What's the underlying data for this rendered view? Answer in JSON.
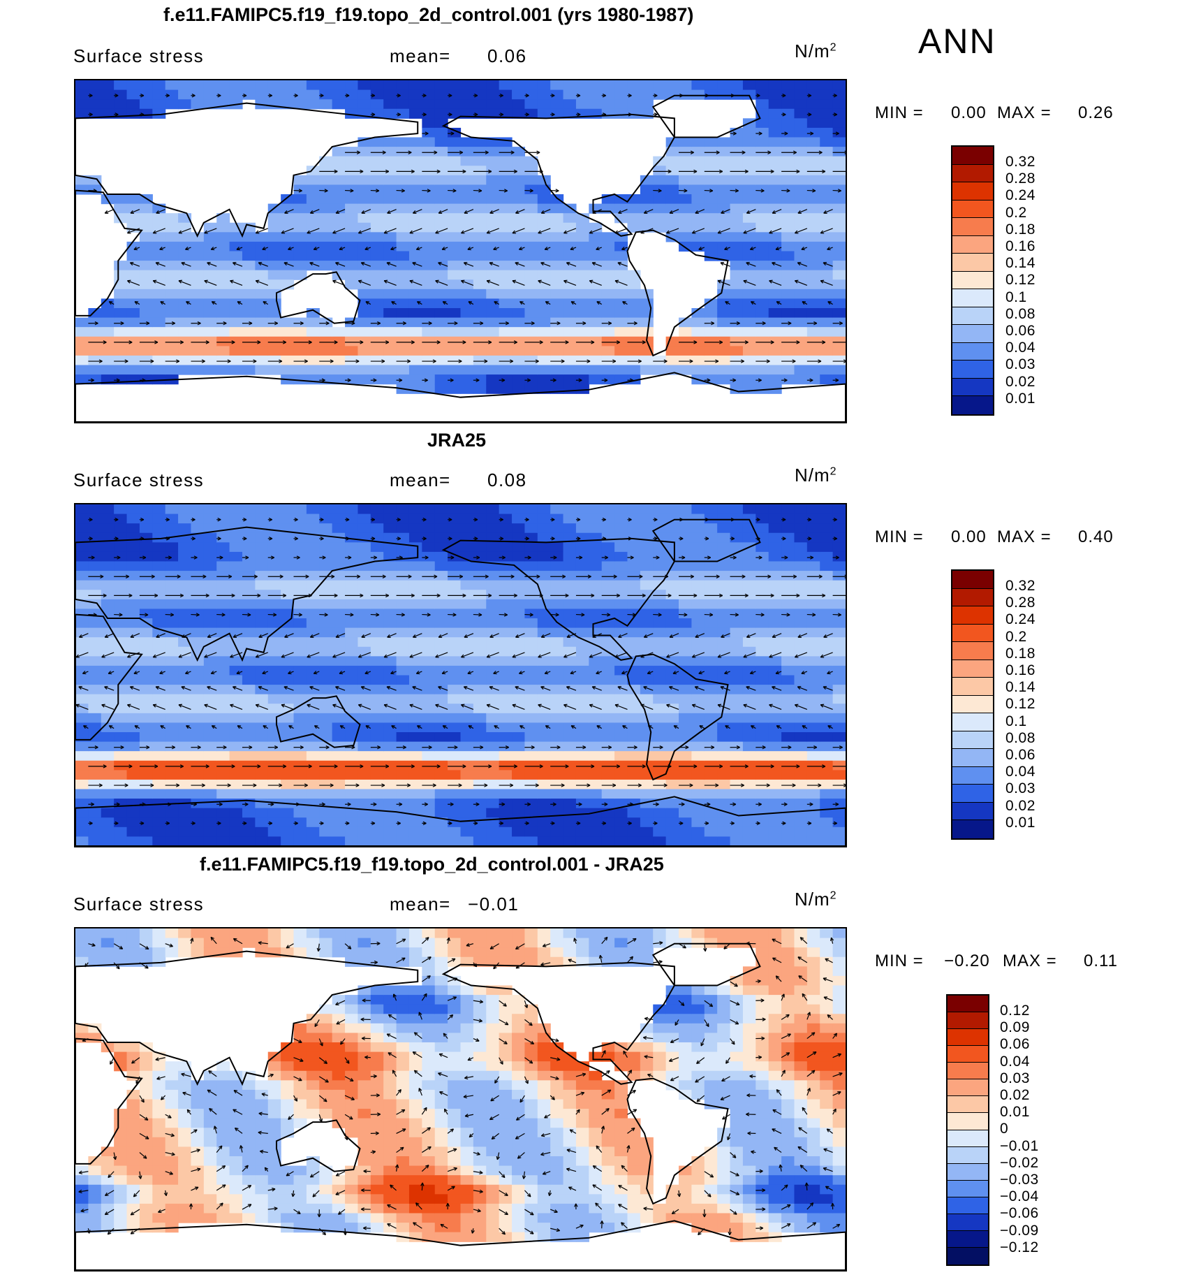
{
  "season": "ANN",
  "chart_data": [
    {
      "type": "heatmap",
      "title": "f.e11.FAMIPC5.f19_f19.topo_2d_control.001 (yrs 1980-1987)",
      "variable": "Surface stress",
      "mean_label": "mean=",
      "mean_value": "0.06",
      "units": "N/m",
      "units_sup": "2",
      "min_label": "MIN =",
      "min_value": "0.00",
      "max_label": "MAX =",
      "max_value": "0.26",
      "levels": [
        "0.32",
        "0.28",
        "0.24",
        "0.2",
        "0.18",
        "0.16",
        "0.14",
        "0.12",
        "0.1",
        "0.08",
        "0.06",
        "0.04",
        "0.03",
        "0.02",
        "0.01"
      ],
      "colors": [
        "#7a0000",
        "#b21a00",
        "#dd3300",
        "#f2561f",
        "#f77c4d",
        "#fba57f",
        "#fcc8a6",
        "#fde8d4",
        "#dbe9fb",
        "#b9d3f8",
        "#93b6f5",
        "#5f90f0",
        "#2f63e6",
        "#1537c2",
        "#06178a"
      ]
    },
    {
      "type": "heatmap",
      "title": "JRA25",
      "variable": "Surface stress",
      "mean_label": "mean=",
      "mean_value": "0.08",
      "units": "N/m",
      "units_sup": "2",
      "min_label": "MIN =",
      "min_value": "0.00",
      "max_label": "MAX =",
      "max_value": "0.40",
      "levels": [
        "0.32",
        "0.28",
        "0.24",
        "0.2",
        "0.18",
        "0.16",
        "0.14",
        "0.12",
        "0.1",
        "0.08",
        "0.06",
        "0.04",
        "0.03",
        "0.02",
        "0.01"
      ],
      "colors": [
        "#7a0000",
        "#b21a00",
        "#dd3300",
        "#f2561f",
        "#f77c4d",
        "#fba57f",
        "#fcc8a6",
        "#fde8d4",
        "#dbe9fb",
        "#b9d3f8",
        "#93b6f5",
        "#5f90f0",
        "#2f63e6",
        "#1537c2",
        "#06178a"
      ]
    },
    {
      "type": "heatmap",
      "title": "f.e11.FAMIPC5.f19_f19.topo_2d_control.001 - JRA25",
      "variable": "Surface stress",
      "mean_label": "mean=",
      "mean_value": "−0.01",
      "units": "N/m",
      "units_sup": "2",
      "min_label": "MIN =",
      "min_value": "−0.20",
      "max_label": "MAX =",
      "max_value": "0.11",
      "levels": [
        "0.12",
        "0.09",
        "0.06",
        "0.04",
        "0.03",
        "0.02",
        "0.01",
        "0",
        "−0.01",
        "−0.02",
        "−0.03",
        "−0.04",
        "−0.06",
        "−0.09",
        "−0.12"
      ],
      "colors": [
        "#7a0000",
        "#b21a00",
        "#dd3300",
        "#f2561f",
        "#f77c4d",
        "#fba57f",
        "#fcc8a6",
        "#fde8d4",
        "#dbe9fb",
        "#b9d3f8",
        "#93b6f5",
        "#5f90f0",
        "#2f63e6",
        "#1537c2",
        "#06178a",
        "#030f63"
      ]
    }
  ]
}
